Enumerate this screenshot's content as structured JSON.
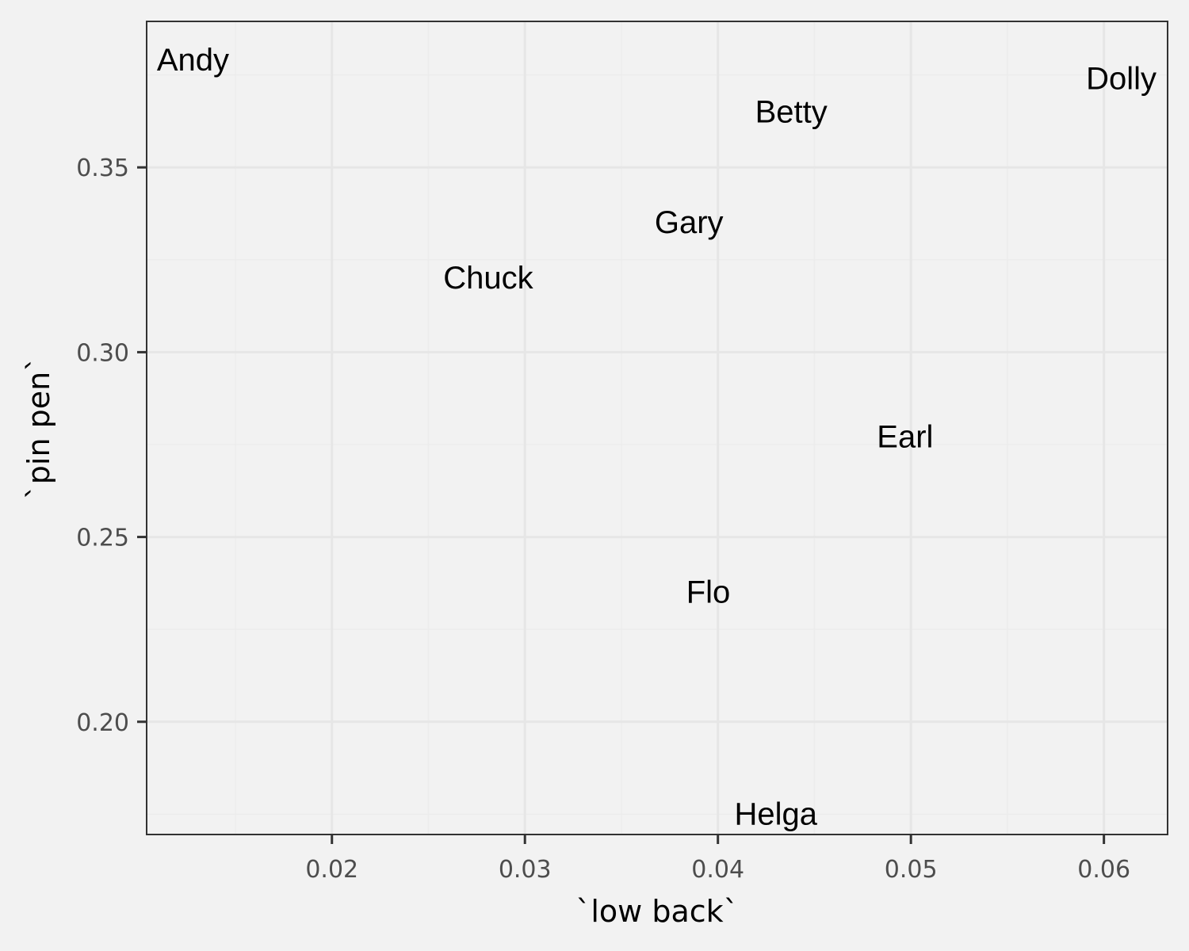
{
  "chart_data": {
    "type": "scatter",
    "title": "",
    "xlabel": "`low back`",
    "ylabel": "`pin pen`",
    "xlim": [
      0.0104,
      0.0633
    ],
    "ylim": [
      0.1695,
      0.3895
    ],
    "x_ticks": [
      0.02,
      0.03,
      0.04,
      0.05,
      0.06
    ],
    "x_tick_labels": [
      "0.02",
      "0.03",
      "0.04",
      "0.05",
      "0.06"
    ],
    "y_ticks": [
      0.2,
      0.25,
      0.3,
      0.35
    ],
    "y_tick_labels": [
      "0.20",
      "0.25",
      "0.30",
      "0.35"
    ],
    "grid": true,
    "marker": "text-label",
    "points": [
      {
        "label": "Andy",
        "x": 0.0128,
        "y": 0.379
      },
      {
        "label": "Betty",
        "x": 0.0438,
        "y": 0.365
      },
      {
        "label": "Chuck",
        "x": 0.0281,
        "y": 0.32
      },
      {
        "label": "Dolly",
        "x": 0.0609,
        "y": 0.374
      },
      {
        "label": "Earl",
        "x": 0.0497,
        "y": 0.277
      },
      {
        "label": "Flo",
        "x": 0.0395,
        "y": 0.235
      },
      {
        "label": "Gary",
        "x": 0.0385,
        "y": 0.335
      },
      {
        "label": "Helga",
        "x": 0.043,
        "y": 0.175
      }
    ],
    "colors": {
      "background": "#f2f2f2",
      "grid_major": "#e6e6e6",
      "grid_minor": "#ececec",
      "panel_border": "#333333",
      "tick_text": "#4d4d4d",
      "text": "#000000"
    }
  }
}
